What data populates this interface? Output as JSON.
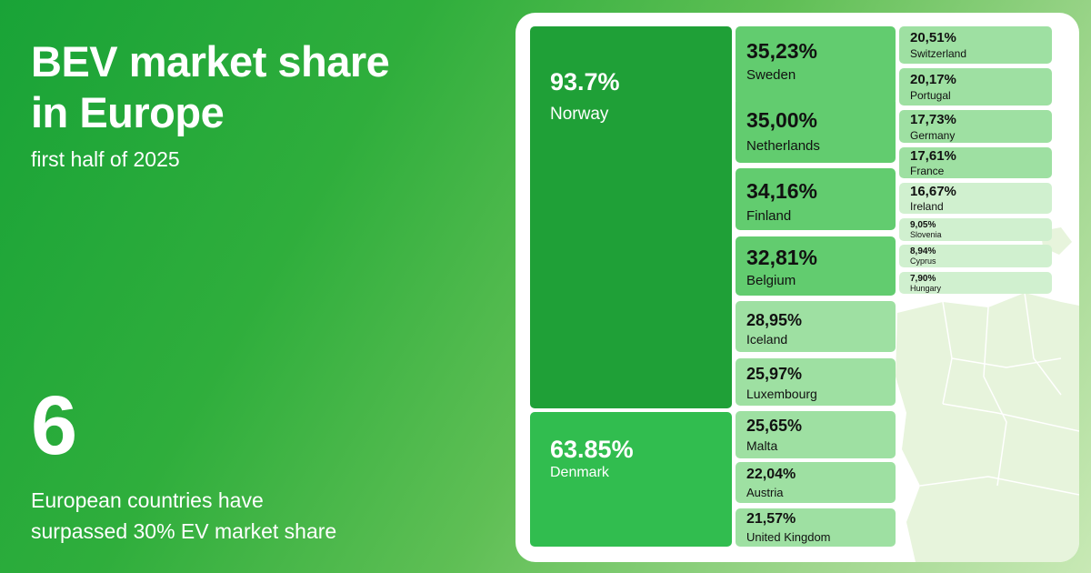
{
  "header": {
    "title_line1": "BEV market share",
    "title_line2": "in Europe",
    "subtitle": "first half of 2025"
  },
  "stat": {
    "number": "6",
    "caption_line1": "European countries have",
    "caption_line2": "surpassed 30% EV market share"
  },
  "chart_data": {
    "type": "treemap",
    "title": "BEV market share in Europe",
    "subtitle": "first half of 2025",
    "unit": "%",
    "items": [
      {
        "name": "Norway",
        "value": 93.7,
        "label": "93.7%"
      },
      {
        "name": "Denmark",
        "value": 63.85,
        "label": "63.85%"
      },
      {
        "name": "Sweden",
        "value": 35.23,
        "label": "35,23%"
      },
      {
        "name": "Netherlands",
        "value": 35.0,
        "label": "35,00%"
      },
      {
        "name": "Finland",
        "value": 34.16,
        "label": "34,16%"
      },
      {
        "name": "Belgium",
        "value": 32.81,
        "label": "32,81%"
      },
      {
        "name": "Iceland",
        "value": 28.95,
        "label": "28,95%"
      },
      {
        "name": "Luxembourg",
        "value": 25.97,
        "label": "25,97%"
      },
      {
        "name": "Malta",
        "value": 25.65,
        "label": "25,65%"
      },
      {
        "name": "Austria",
        "value": 22.04,
        "label": "22,04%"
      },
      {
        "name": "United Kingdom",
        "value": 21.57,
        "label": "21,57%"
      },
      {
        "name": "Switzerland",
        "value": 20.51,
        "label": "20,51%"
      },
      {
        "name": "Portugal",
        "value": 20.17,
        "label": "20,17%"
      },
      {
        "name": "Germany",
        "value": 17.73,
        "label": "17,73%"
      },
      {
        "name": "France",
        "value": 17.61,
        "label": "17,61%"
      },
      {
        "name": "Ireland",
        "value": 16.67,
        "label": "16,67%"
      },
      {
        "name": "Slovenia",
        "value": 9.05,
        "label": "9,05%"
      },
      {
        "name": "Cyprus",
        "value": 8.94,
        "label": "8,94%"
      },
      {
        "name": "Hungary",
        "value": 7.9,
        "label": "7,90%"
      }
    ],
    "colors": {
      "dark": "#1fa037",
      "medium": "#31bd4f",
      "light": "#62cc6f",
      "pale": "#9ee0a2",
      "palest": "#d0f0cf"
    }
  }
}
